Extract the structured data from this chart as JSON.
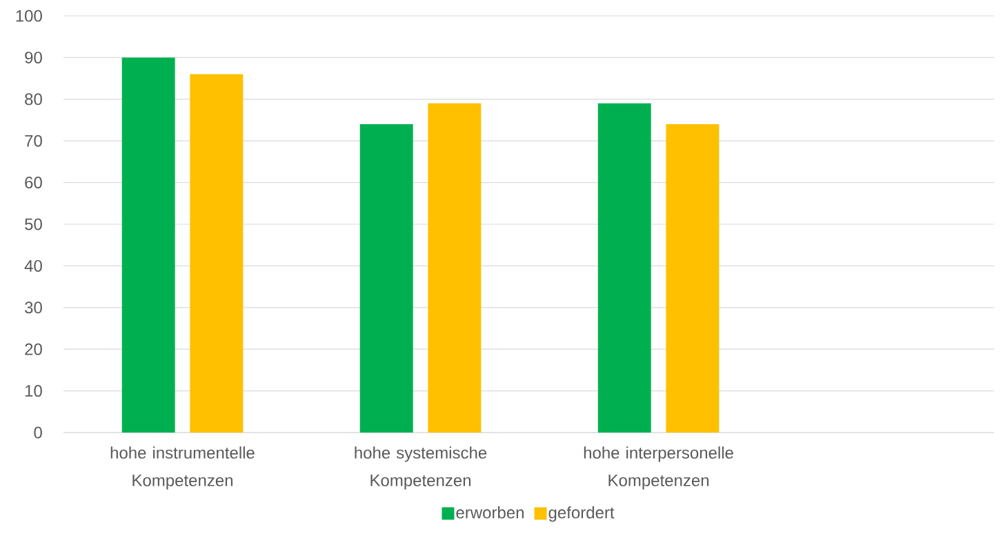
{
  "chart_data": {
    "type": "bar",
    "categories": [
      "hohe instrumentelle Kompetenzen",
      "hohe systemische Kompetenzen",
      "hohe interpersonelle Kompetenzen",
      null
    ],
    "series": [
      {
        "name": "erworben",
        "color": "#00b050",
        "values": [
          90,
          74,
          79,
          null
        ]
      },
      {
        "name": "gefordert",
        "color": "#ffc000",
        "values": [
          86,
          79,
          74,
          null
        ]
      }
    ],
    "ylim": [
      0,
      100
    ],
    "yticks": [
      0,
      10,
      20,
      30,
      40,
      50,
      60,
      70,
      80,
      90,
      100
    ],
    "grid": "y",
    "legend": "bottom"
  }
}
